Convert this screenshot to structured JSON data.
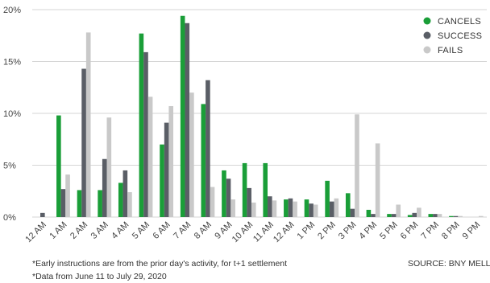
{
  "chart_data": {
    "type": "bar",
    "categories": [
      "12 AM",
      "1 AM",
      "2 AM",
      "3 AM",
      "4 AM",
      "5 AM",
      "6 AM",
      "7 AM",
      "8 AM",
      "9 AM",
      "10 AM",
      "11 AM",
      "12 AM",
      "1 PM",
      "2 PM",
      "3 PM",
      "4 PM",
      "5 PM",
      "6 PM",
      "7 PM",
      "8 PM",
      "9 PM"
    ],
    "series": [
      {
        "name": "CANCELS",
        "color": "#1a9e38",
        "values": [
          0,
          9.8,
          2.6,
          2.6,
          3.3,
          17.7,
          7.0,
          19.4,
          10.9,
          4.5,
          5.2,
          5.2,
          1.7,
          1.7,
          3.5,
          2.3,
          0.7,
          0.3,
          0.2,
          0.3,
          0.1,
          0
        ]
      },
      {
        "name": "SUCCESS",
        "color": "#5a5e66",
        "values": [
          0.4,
          2.7,
          14.3,
          5.6,
          4.5,
          15.9,
          9.1,
          18.7,
          13.2,
          3.7,
          2.8,
          2.0,
          1.8,
          1.3,
          1.5,
          0.8,
          0.3,
          0.3,
          0.4,
          0.3,
          0.1,
          0
        ]
      },
      {
        "name": "FAILS",
        "color": "#c9c9c9",
        "values": [
          0,
          4.1,
          17.8,
          9.6,
          2.4,
          11.6,
          10.7,
          12.0,
          2.9,
          1.7,
          1.4,
          1.6,
          1.5,
          1.2,
          1.8,
          9.9,
          7.1,
          1.2,
          0.9,
          0.3,
          0.1,
          0.1
        ]
      }
    ],
    "ylim": [
      0,
      20
    ],
    "yticks": [
      0,
      5,
      10,
      15,
      20
    ],
    "ytick_labels": [
      "0%",
      "5%",
      "10%",
      "15%",
      "20%"
    ],
    "grid": true,
    "legend_position": "top-right"
  },
  "footnotes": {
    "note1": "*Early instructions are from the prior day's activity, for t+1 settlement",
    "note2": "*Data from June 11 to July 29, 2020",
    "source": "SOURCE: BNY MELLON"
  }
}
